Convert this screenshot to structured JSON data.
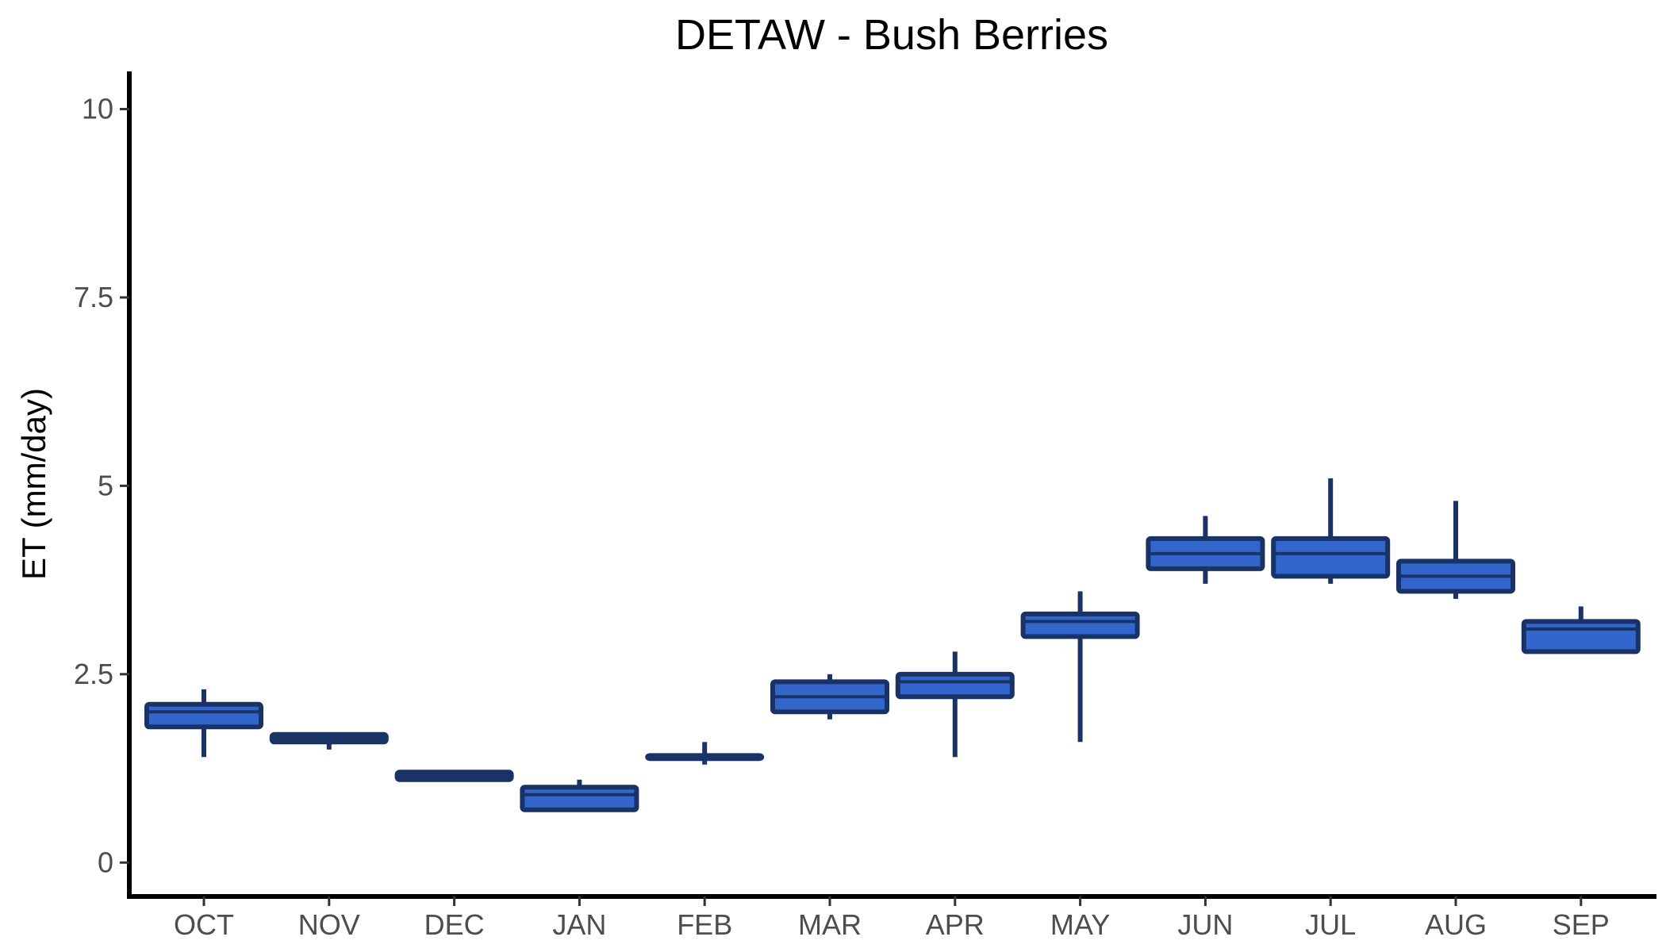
{
  "chart_data": {
    "type": "boxplot",
    "title": "DETAW - Bush Berries",
    "xlabel": "",
    "ylabel": "ET (mm/day)",
    "ylim": [
      -0.45,
      10.5
    ],
    "yticks": [
      0,
      2.5,
      5,
      7.5,
      10
    ],
    "ytick_labels": [
      "0",
      "2.5",
      "5",
      "7.5",
      "10"
    ],
    "grid": false,
    "legend": "none",
    "colors": {
      "box_fill": "#3366cc",
      "box_edge": "#1a3366",
      "axis": "#000000"
    },
    "categories": [
      "OCT",
      "NOV",
      "DEC",
      "JAN",
      "FEB",
      "MAR",
      "APR",
      "MAY",
      "JUN",
      "JUL",
      "AUG",
      "SEP"
    ],
    "boxes": [
      {
        "min": 1.4,
        "q1": 1.8,
        "median": 2.0,
        "q3": 2.1,
        "max": 2.3
      },
      {
        "min": 1.5,
        "q1": 1.6,
        "median": 1.65,
        "q3": 1.7,
        "max": 1.7
      },
      {
        "min": 1.1,
        "q1": 1.1,
        "median": 1.15,
        "q3": 1.2,
        "max": 1.2
      },
      {
        "min": 0.7,
        "q1": 0.7,
        "median": 0.9,
        "q3": 1.0,
        "max": 1.1
      },
      {
        "min": 1.3,
        "q1": 1.38,
        "median": 1.4,
        "q3": 1.42,
        "max": 1.6
      },
      {
        "min": 1.9,
        "q1": 2.0,
        "median": 2.2,
        "q3": 2.4,
        "max": 2.5
      },
      {
        "min": 1.4,
        "q1": 2.2,
        "median": 2.4,
        "q3": 2.5,
        "max": 2.8
      },
      {
        "min": 1.6,
        "q1": 3.0,
        "median": 3.2,
        "q3": 3.3,
        "max": 3.6
      },
      {
        "min": 3.7,
        "q1": 3.9,
        "median": 4.1,
        "q3": 4.3,
        "max": 4.6
      },
      {
        "min": 3.7,
        "q1": 3.8,
        "median": 4.1,
        "q3": 4.3,
        "max": 5.1
      },
      {
        "min": 3.5,
        "q1": 3.6,
        "median": 3.8,
        "q3": 4.0,
        "max": 4.8
      },
      {
        "min": 2.8,
        "q1": 2.8,
        "median": 3.1,
        "q3": 3.2,
        "max": 3.4
      }
    ]
  }
}
